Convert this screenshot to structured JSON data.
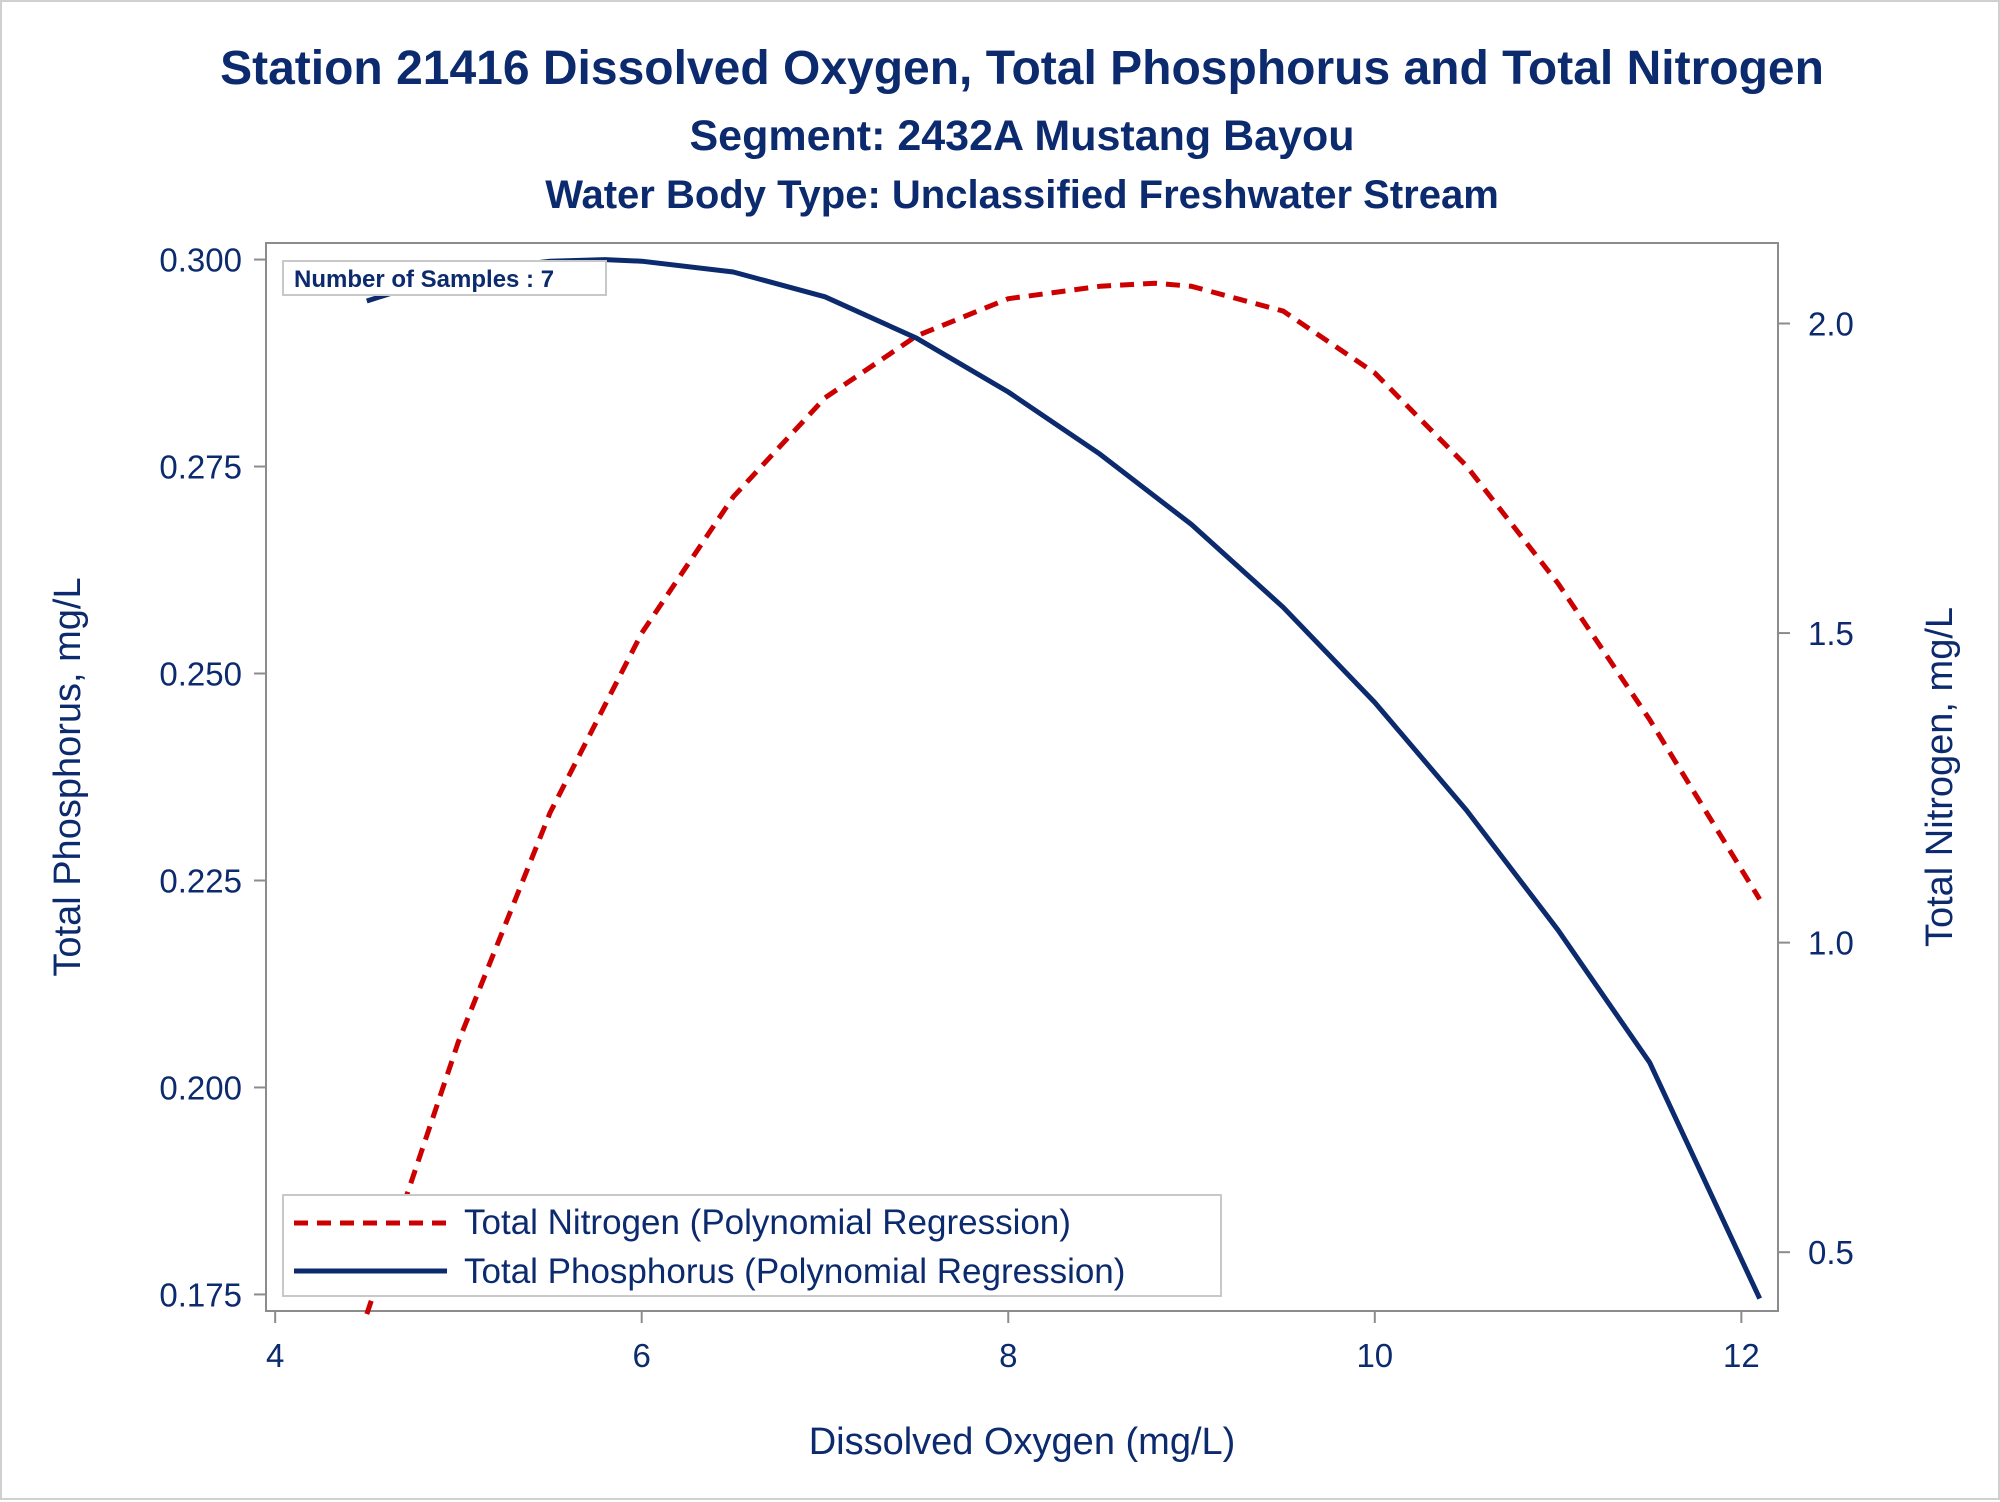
{
  "chart_data": {
    "type": "line",
    "title": "Station 21416  Dissolved Oxygen, Total Phosphorus and Total Nitrogen",
    "subtitle": "Segment: 2432A  Mustang Bayou",
    "subtitle2": "Water Body Type: Unclassified Freshwater Stream",
    "xlabel": "Dissolved Oxygen (mg/L)",
    "ylabel": "Total Phosphorus, mg/L",
    "y2label": "Total Nitrogen, mg/L",
    "xlim": [
      3.95,
      12.2
    ],
    "ylim": [
      0.173,
      0.302
    ],
    "y2lim": [
      0.405,
      2.13
    ],
    "xticks": [
      "4",
      "6",
      "8",
      "10",
      "12"
    ],
    "yticks": [
      "0.175",
      "0.200",
      "0.225",
      "0.250",
      "0.275",
      "0.300"
    ],
    "y2ticks": [
      "0.5",
      "1.0",
      "1.5",
      "2.0"
    ],
    "grid": false,
    "legend_position": "bottom-left",
    "annotation": "Number of Samples : 7",
    "series": [
      {
        "name": "Total Nitrogen (Polynomial Regression)",
        "axis": "right",
        "style": "dashed",
        "color": "#cc0000",
        "x": [
          4.5,
          5.0,
          5.5,
          6.0,
          6.5,
          7.0,
          7.5,
          8.0,
          8.5,
          8.8,
          9.0,
          9.5,
          10.0,
          10.5,
          11.0,
          11.5,
          12.1
        ],
        "y": [
          0.4,
          0.84,
          1.21,
          1.5,
          1.72,
          1.88,
          1.98,
          2.04,
          2.06,
          2.065,
          2.06,
          2.02,
          1.92,
          1.77,
          1.58,
          1.36,
          1.07
        ]
      },
      {
        "name": "Total Phosphorus (Polynomial Regression)",
        "axis": "left",
        "style": "solid",
        "color": "#0c2a6e",
        "x": [
          4.5,
          5.0,
          5.5,
          5.8,
          6.0,
          6.5,
          7.0,
          7.5,
          8.0,
          8.5,
          9.0,
          9.5,
          10.0,
          10.5,
          11.0,
          11.5,
          12.1
        ],
        "y": [
          0.295,
          0.2985,
          0.2998,
          0.3,
          0.2998,
          0.2985,
          0.2955,
          0.2905,
          0.284,
          0.2765,
          0.268,
          0.258,
          0.2465,
          0.2335,
          0.219,
          0.203,
          0.1745
        ]
      }
    ]
  }
}
